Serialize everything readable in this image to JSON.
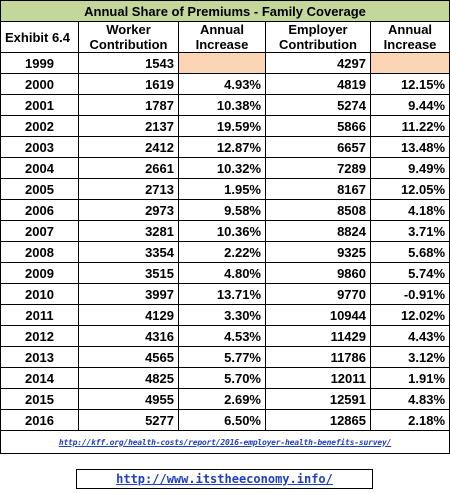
{
  "title": "Annual Share of Premiums - Family Coverage",
  "columns": [
    "Exhibit 6.4",
    "Worker Contribution",
    "Annual Increase",
    "Employer Contribution",
    "Annual Increase"
  ],
  "rows": [
    [
      "1999",
      "1543",
      null,
      "4297",
      null
    ],
    [
      "2000",
      "1619",
      "4.93%",
      "4819",
      "12.15%"
    ],
    [
      "2001",
      "1787",
      "10.38%",
      "5274",
      "9.44%"
    ],
    [
      "2002",
      "2137",
      "19.59%",
      "5866",
      "11.22%"
    ],
    [
      "2003",
      "2412",
      "12.87%",
      "6657",
      "13.48%"
    ],
    [
      "2004",
      "2661",
      "10.32%",
      "7289",
      "9.49%"
    ],
    [
      "2005",
      "2713",
      "1.95%",
      "8167",
      "12.05%"
    ],
    [
      "2006",
      "2973",
      "9.58%",
      "8508",
      "4.18%"
    ],
    [
      "2007",
      "3281",
      "10.36%",
      "8824",
      "3.71%"
    ],
    [
      "2008",
      "3354",
      "2.22%",
      "9325",
      "5.68%"
    ],
    [
      "2009",
      "3515",
      "4.80%",
      "9860",
      "5.74%"
    ],
    [
      "2010",
      "3997",
      "13.71%",
      "9770",
      "-0.91%"
    ],
    [
      "2011",
      "4129",
      "3.30%",
      "10944",
      "12.02%"
    ],
    [
      "2012",
      "4316",
      "4.53%",
      "11429",
      "4.43%"
    ],
    [
      "2013",
      "4565",
      "5.77%",
      "11786",
      "3.12%"
    ],
    [
      "2014",
      "4825",
      "5.70%",
      "12011",
      "1.91%"
    ],
    [
      "2015",
      "4955",
      "2.69%",
      "12591",
      "4.83%"
    ],
    [
      "2016",
      "5277",
      "6.50%",
      "12865",
      "2.18%"
    ]
  ],
  "source": "http://kff.org/health-costs/report/2016-employer-health-benefits-survey/",
  "site": "http://www.itstheeconomy.info/"
}
